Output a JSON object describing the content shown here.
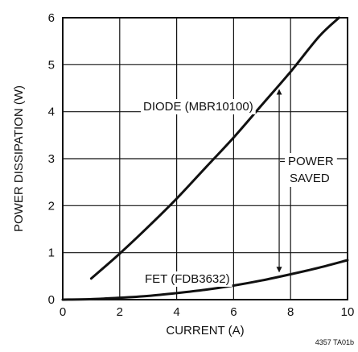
{
  "chart_data": {
    "type": "line",
    "xlabel": "CURRENT (A)",
    "ylabel": "POWER DISSIPATION (W)",
    "xlim": [
      0,
      10
    ],
    "ylim": [
      0,
      6
    ],
    "xticks": [
      0,
      2,
      4,
      6,
      8,
      10
    ],
    "yticks": [
      0,
      1,
      2,
      3,
      4,
      5,
      6
    ],
    "grid": true,
    "series": [
      {
        "name": "DIODE (MBR10100)",
        "color": "#111111",
        "x": [
          1,
          2,
          3,
          4,
          5,
          6,
          7,
          8,
          9,
          9.7
        ],
        "y": [
          0.45,
          0.98,
          1.55,
          2.15,
          2.8,
          3.45,
          4.15,
          4.85,
          5.6,
          6.0
        ]
      },
      {
        "name": "FET (FDB3632)",
        "color": "#111111",
        "x": [
          0,
          1,
          2,
          3,
          4,
          5,
          6,
          7,
          8,
          9,
          10
        ],
        "y": [
          0,
          0.01,
          0.04,
          0.08,
          0.14,
          0.21,
          0.3,
          0.41,
          0.54,
          0.68,
          0.84
        ]
      }
    ],
    "annotations": {
      "power_saved_line1": "POWER",
      "power_saved_line2": "SAVED",
      "arrow_x": 7.6,
      "figure_code": "4357 TA01b"
    }
  }
}
